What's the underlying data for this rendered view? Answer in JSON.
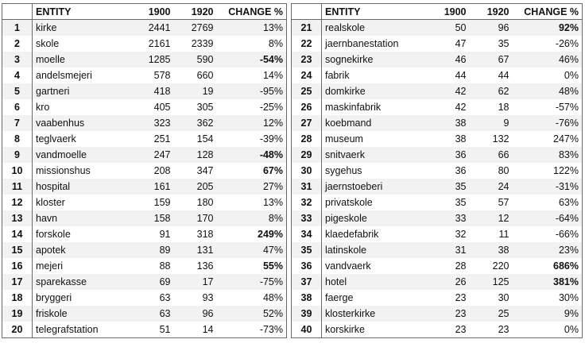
{
  "headers": {
    "num": "",
    "entity": "ENTITY",
    "y1900": "1900",
    "y1920": "1920",
    "change": "CHANGE %"
  },
  "left_rows": [
    {
      "n": "1",
      "entity": "kirke",
      "v1900": "2441",
      "v1920": "2769",
      "change": "13%",
      "bold": false
    },
    {
      "n": "2",
      "entity": "skole",
      "v1900": "2161",
      "v1920": "2339",
      "change": "8%",
      "bold": false
    },
    {
      "n": "3",
      "entity": "moelle",
      "v1900": "1285",
      "v1920": "590",
      "change": "-54%",
      "bold": true
    },
    {
      "n": "4",
      "entity": "andelsmejeri",
      "v1900": "578",
      "v1920": "660",
      "change": "14%",
      "bold": false
    },
    {
      "n": "5",
      "entity": "gartneri",
      "v1900": "418",
      "v1920": "19",
      "change": "-95%",
      "bold": false
    },
    {
      "n": "6",
      "entity": "kro",
      "v1900": "405",
      "v1920": "305",
      "change": "-25%",
      "bold": false
    },
    {
      "n": "7",
      "entity": "vaabenhus",
      "v1900": "323",
      "v1920": "362",
      "change": "12%",
      "bold": false
    },
    {
      "n": "8",
      "entity": "teglvaerk",
      "v1900": "251",
      "v1920": "154",
      "change": "-39%",
      "bold": false
    },
    {
      "n": "9",
      "entity": "vandmoelle",
      "v1900": "247",
      "v1920": "128",
      "change": "-48%",
      "bold": true
    },
    {
      "n": "10",
      "entity": "missionshus",
      "v1900": "208",
      "v1920": "347",
      "change": "67%",
      "bold": true
    },
    {
      "n": "11",
      "entity": "hospital",
      "v1900": "161",
      "v1920": "205",
      "change": "27%",
      "bold": false
    },
    {
      "n": "12",
      "entity": "kloster",
      "v1900": "159",
      "v1920": "180",
      "change": "13%",
      "bold": false
    },
    {
      "n": "13",
      "entity": "havn",
      "v1900": "158",
      "v1920": "170",
      "change": "8%",
      "bold": false
    },
    {
      "n": "14",
      "entity": "forskole",
      "v1900": "91",
      "v1920": "318",
      "change": "249%",
      "bold": true
    },
    {
      "n": "15",
      "entity": "apotek",
      "v1900": "89",
      "v1920": "131",
      "change": "47%",
      "bold": false
    },
    {
      "n": "16",
      "entity": "mejeri",
      "v1900": "88",
      "v1920": "136",
      "change": "55%",
      "bold": true
    },
    {
      "n": "17",
      "entity": "sparekasse",
      "v1900": "69",
      "v1920": "17",
      "change": "-75%",
      "bold": false
    },
    {
      "n": "18",
      "entity": "bryggeri",
      "v1900": "63",
      "v1920": "93",
      "change": "48%",
      "bold": false
    },
    {
      "n": "19",
      "entity": "friskole",
      "v1900": "63",
      "v1920": "96",
      "change": "52%",
      "bold": false
    },
    {
      "n": "20",
      "entity": "telegrafstation",
      "v1900": "51",
      "v1920": "14",
      "change": "-73%",
      "bold": false
    }
  ],
  "right_rows": [
    {
      "n": "21",
      "entity": "realskole",
      "v1900": "50",
      "v1920": "96",
      "change": "92%",
      "bold": true
    },
    {
      "n": "22",
      "entity": "jaernbanestation",
      "v1900": "47",
      "v1920": "35",
      "change": "-26%",
      "bold": false
    },
    {
      "n": "23",
      "entity": "sognekirke",
      "v1900": "46",
      "v1920": "67",
      "change": "46%",
      "bold": false
    },
    {
      "n": "24",
      "entity": "fabrik",
      "v1900": "44",
      "v1920": "44",
      "change": "0%",
      "bold": false
    },
    {
      "n": "25",
      "entity": "domkirke",
      "v1900": "42",
      "v1920": "62",
      "change": "48%",
      "bold": false
    },
    {
      "n": "26",
      "entity": "maskinfabrik",
      "v1900": "42",
      "v1920": "18",
      "change": "-57%",
      "bold": false
    },
    {
      "n": "27",
      "entity": "koebmand",
      "v1900": "38",
      "v1920": "9",
      "change": "-76%",
      "bold": false
    },
    {
      "n": "28",
      "entity": "museum",
      "v1900": "38",
      "v1920": "132",
      "change": "247%",
      "bold": false
    },
    {
      "n": "29",
      "entity": "snitvaerk",
      "v1900": "36",
      "v1920": "66",
      "change": "83%",
      "bold": false
    },
    {
      "n": "30",
      "entity": "sygehus",
      "v1900": "36",
      "v1920": "80",
      "change": "122%",
      "bold": false
    },
    {
      "n": "31",
      "entity": "jaernstoeberi",
      "v1900": "35",
      "v1920": "24",
      "change": "-31%",
      "bold": false
    },
    {
      "n": "32",
      "entity": "privatskole",
      "v1900": "35",
      "v1920": "57",
      "change": "63%",
      "bold": false
    },
    {
      "n": "33",
      "entity": "pigeskole",
      "v1900": "33",
      "v1920": "12",
      "change": "-64%",
      "bold": false
    },
    {
      "n": "34",
      "entity": "klaedefabrik",
      "v1900": "32",
      "v1920": "11",
      "change": "-66%",
      "bold": false
    },
    {
      "n": "35",
      "entity": "latinskole",
      "v1900": "31",
      "v1920": "38",
      "change": "23%",
      "bold": false
    },
    {
      "n": "36",
      "entity": "vandvaerk",
      "v1900": "28",
      "v1920": "220",
      "change": "686%",
      "bold": true
    },
    {
      "n": "37",
      "entity": "hotel",
      "v1900": "26",
      "v1920": "125",
      "change": "381%",
      "bold": true
    },
    {
      "n": "38",
      "entity": "faerge",
      "v1900": "23",
      "v1920": "30",
      "change": "30%",
      "bold": false
    },
    {
      "n": "39",
      "entity": "klosterkirke",
      "v1900": "23",
      "v1920": "25",
      "change": "9%",
      "bold": false
    },
    {
      "n": "40",
      "entity": "korskirke",
      "v1900": "23",
      "v1920": "23",
      "change": "0%",
      "bold": false
    }
  ]
}
